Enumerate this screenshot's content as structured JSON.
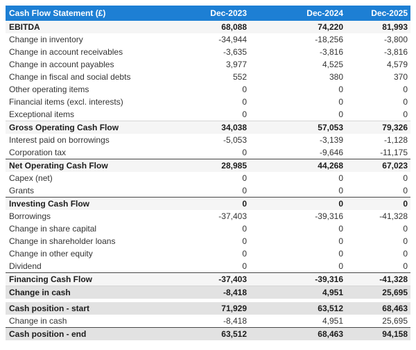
{
  "colors": {
    "header_bg": "#1d7fd4",
    "header_fg": "#ffffff",
    "section_row_bg": "#f5f5f5",
    "total_row_bg": "#e2e2e2",
    "total_border": "#474747"
  },
  "table": {
    "title": "Cash Flow Statement (£)",
    "columns": [
      "Dec-2023",
      "Dec-2024",
      "Dec-2025"
    ],
    "rows": [
      {
        "label": "EBITDA",
        "values": [
          "68,088",
          "74,220",
          "81,993"
        ],
        "style": "section",
        "border": "none"
      },
      {
        "label": "Change in inventory",
        "values": [
          "-34,944",
          "-18,256",
          "-3,800"
        ],
        "style": "normal",
        "border": "none"
      },
      {
        "label": "Change in account receivables",
        "values": [
          "-3,635",
          "-3,816",
          "-3,816"
        ],
        "style": "normal",
        "border": "none"
      },
      {
        "label": "Change in account payables",
        "values": [
          "3,977",
          "4,525",
          "4,579"
        ],
        "style": "normal",
        "border": "none"
      },
      {
        "label": "Change in fiscal and social debts",
        "values": [
          "552",
          "380",
          "370"
        ],
        "style": "normal",
        "border": "none"
      },
      {
        "label": "Other operating items",
        "values": [
          "0",
          "0",
          "0"
        ],
        "style": "normal",
        "border": "none"
      },
      {
        "label": "Financial items (excl. interests)",
        "values": [
          "0",
          "0",
          "0"
        ],
        "style": "normal",
        "border": "none"
      },
      {
        "label": "Exceptional items",
        "values": [
          "0",
          "0",
          "0"
        ],
        "style": "normal",
        "border": "none"
      },
      {
        "label": "Gross Operating Cash Flow",
        "values": [
          "34,038",
          "57,053",
          "79,326"
        ],
        "style": "section",
        "border": "light"
      },
      {
        "label": "Interest paid on borrowings",
        "values": [
          "-5,053",
          "-3,139",
          "-1,128"
        ],
        "style": "normal",
        "border": "none"
      },
      {
        "label": "Corporation tax",
        "values": [
          "0",
          "-9,646",
          "-11,175"
        ],
        "style": "normal",
        "border": "none"
      },
      {
        "label": "Net Operating Cash Flow",
        "values": [
          "28,985",
          "44,268",
          "67,023"
        ],
        "style": "section",
        "border": "dark"
      },
      {
        "label": "Capex (net)",
        "values": [
          "0",
          "0",
          "0"
        ],
        "style": "normal",
        "border": "none"
      },
      {
        "label": "Grants",
        "values": [
          "0",
          "0",
          "0"
        ],
        "style": "normal",
        "border": "none"
      },
      {
        "label": "Investing Cash Flow",
        "values": [
          "0",
          "0",
          "0"
        ],
        "style": "section",
        "border": "dark"
      },
      {
        "label": "Borrowings",
        "values": [
          "-37,403",
          "-39,316",
          "-41,328"
        ],
        "style": "normal",
        "border": "none"
      },
      {
        "label": "Change in share capital",
        "values": [
          "0",
          "0",
          "0"
        ],
        "style": "normal",
        "border": "none"
      },
      {
        "label": "Change in shareholder loans",
        "values": [
          "0",
          "0",
          "0"
        ],
        "style": "normal",
        "border": "none"
      },
      {
        "label": "Change in other equity",
        "values": [
          "0",
          "0",
          "0"
        ],
        "style": "normal",
        "border": "none"
      },
      {
        "label": "Dividend",
        "values": [
          "0",
          "0",
          "0"
        ],
        "style": "normal",
        "border": "none"
      },
      {
        "label": "Financing Cash Flow",
        "values": [
          "-37,403",
          "-39,316",
          "-41,328"
        ],
        "style": "section",
        "border": "dark"
      },
      {
        "label": "Change in cash",
        "values": [
          "-8,418",
          "4,951",
          "25,695"
        ],
        "style": "total",
        "border": "light"
      },
      {
        "spacer": true
      },
      {
        "label": "Cash position - start",
        "values": [
          "71,929",
          "63,512",
          "68,463"
        ],
        "style": "total",
        "border": "none"
      },
      {
        "label": "Change in cash",
        "values": [
          "-8,418",
          "4,951",
          "25,695"
        ],
        "style": "normal",
        "border": "none"
      },
      {
        "label": "Cash position - end",
        "values": [
          "63,512",
          "68,463",
          "94,158"
        ],
        "style": "total",
        "border": "dark"
      }
    ]
  }
}
